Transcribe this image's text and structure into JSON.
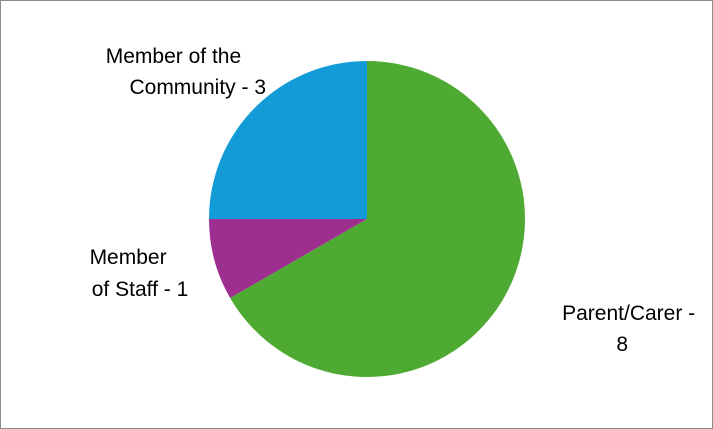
{
  "chart_data": {
    "type": "pie",
    "title": "",
    "start_angle_deg": 0,
    "direction": "clockwise",
    "slices": [
      {
        "label_lines": [
          "Parent/Carer -",
          "8"
        ],
        "category": "Parent/Carer",
        "value": 8,
        "color": "#4eaa32"
      },
      {
        "label_lines": [
          "Member",
          "of Staff - 1"
        ],
        "category": "Member of Staff",
        "value": 1,
        "color": "#9e2f91"
      },
      {
        "label_lines": [
          "Member of the",
          "Community - 3"
        ],
        "category": "Member of the Community",
        "value": 3,
        "color": "#129bd6"
      }
    ],
    "legend": "none",
    "data_labels": "outside"
  }
}
